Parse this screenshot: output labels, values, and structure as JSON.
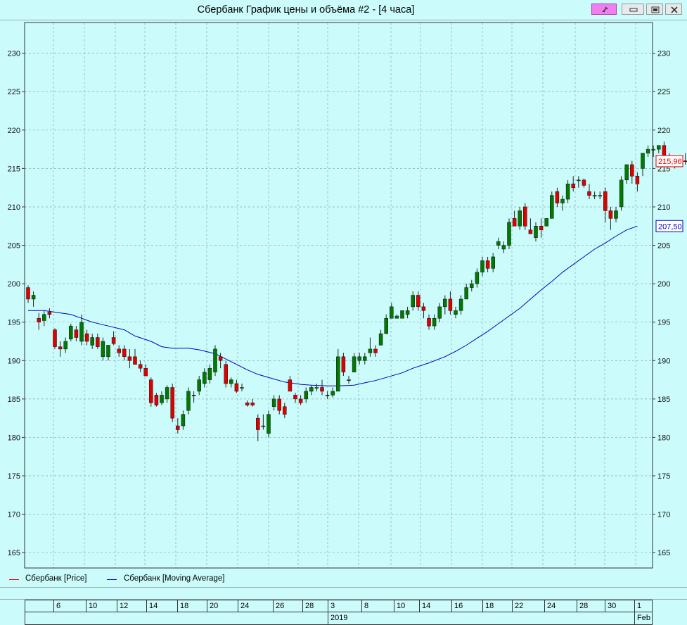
{
  "window": {
    "title": "Сбербанк График цены и объёма #2 - [4 часа]"
  },
  "legend": {
    "price_label": "Сбербанк [Price]",
    "ma_label": "Сбербанк [Moving Average]"
  },
  "time_axis": {
    "days": [
      "6",
      "10",
      "12",
      "14",
      "18",
      "20",
      "24",
      "26",
      "28",
      "3",
      "8",
      "10",
      "14",
      "16",
      "18",
      "22",
      "24",
      "28",
      "30",
      "1"
    ],
    "year": "2019",
    "month": "Feb"
  },
  "chart_data": {
    "type": "candlestick",
    "title": "",
    "ylim": [
      163,
      234
    ],
    "y_ticks": [
      165,
      170,
      175,
      180,
      185,
      190,
      195,
      200,
      205,
      210,
      215,
      220,
      225,
      230
    ],
    "grid": true,
    "last_price": "215,96",
    "last_ma": "207,50",
    "colors": {
      "up": "#007a00",
      "down": "#e00000",
      "ma": "#0000c0",
      "price_label": "#e00000",
      "ma_label": "#0000c0"
    },
    "candles": [
      [
        199.5,
        199.8,
        197.5,
        198.0
      ],
      [
        198.0,
        199.0,
        197.0,
        198.5
      ],
      [
        195.5,
        196.2,
        194.0,
        195.0
      ],
      [
        195.2,
        196.5,
        194.5,
        196.0
      ],
      [
        196.3,
        196.8,
        195.5,
        196.0
      ],
      [
        194.0,
        194.2,
        191.5,
        191.8
      ],
      [
        191.8,
        192.5,
        190.5,
        191.5
      ],
      [
        191.5,
        193.0,
        191.0,
        192.5
      ],
      [
        192.8,
        194.8,
        192.5,
        194.5
      ],
      [
        194.0,
        194.5,
        192.5,
        193.0
      ],
      [
        192.5,
        196.0,
        192.0,
        195.0
      ],
      [
        193.5,
        194.0,
        192.0,
        192.5
      ],
      [
        192.0,
        193.5,
        191.5,
        193.0
      ],
      [
        193.0,
        193.5,
        191.5,
        191.8
      ],
      [
        190.5,
        193.0,
        190.0,
        192.5
      ],
      [
        190.5,
        192.0,
        190.0,
        192.0
      ],
      [
        193.0,
        193.8,
        192.0,
        192.2
      ],
      [
        191.5,
        192.0,
        190.5,
        191.0
      ],
      [
        191.5,
        192.0,
        190.0,
        190.5
      ],
      [
        190.5,
        191.5,
        189.0,
        190.0
      ],
      [
        190.5,
        191.5,
        189.5,
        189.5
      ],
      [
        189.5,
        190.0,
        188.5,
        189.0
      ],
      [
        189.0,
        189.5,
        188.0,
        188.0
      ],
      [
        187.5,
        187.8,
        184.0,
        184.5
      ],
      [
        185.5,
        185.8,
        184.0,
        184.2
      ],
      [
        184.5,
        186.0,
        184.2,
        185.5
      ],
      [
        185.0,
        186.8,
        184.5,
        186.5
      ],
      [
        186.5,
        187.0,
        182.0,
        182.5
      ],
      [
        181.5,
        182.5,
        180.5,
        181.0
      ],
      [
        181.5,
        183.5,
        181.0,
        183.0
      ],
      [
        183.5,
        186.5,
        183.0,
        186.0
      ],
      [
        185.5,
        186.0,
        184.5,
        185.5
      ],
      [
        186.0,
        188.0,
        185.5,
        187.5
      ],
      [
        187.0,
        189.0,
        186.5,
        188.5
      ],
      [
        187.5,
        189.5,
        187.0,
        189.0
      ],
      [
        188.5,
        192.0,
        188.0,
        191.5
      ],
      [
        190.5,
        191.0,
        189.0,
        190.0
      ],
      [
        189.5,
        190.0,
        186.5,
        187.0
      ],
      [
        187.0,
        187.8,
        186.5,
        187.5
      ],
      [
        187.0,
        187.5,
        185.8,
        186.0
      ],
      [
        186.5,
        187.0,
        186.0,
        186.5
      ],
      [
        184.5,
        184.8,
        184.0,
        184.2
      ],
      [
        184.5,
        185.0,
        184.0,
        184.2
      ],
      [
        182.5,
        183.0,
        179.5,
        181.0
      ],
      [
        181.5,
        183.0,
        181.0,
        181.5
      ],
      [
        180.5,
        183.5,
        180.0,
        183.0
      ],
      [
        184.0,
        185.5,
        183.5,
        185.0
      ],
      [
        185.0,
        185.5,
        183.0,
        183.5
      ],
      [
        184.0,
        184.5,
        182.5,
        183.0
      ],
      [
        187.5,
        188.0,
        186.0,
        186.0
      ],
      [
        185.5,
        185.8,
        184.5,
        185.0
      ],
      [
        185.0,
        185.5,
        184.2,
        184.5
      ],
      [
        185.0,
        186.5,
        184.5,
        186.0
      ],
      [
        186.0,
        186.8,
        185.5,
        186.5
      ],
      [
        186.5,
        187.0,
        186.0,
        186.5
      ],
      [
        186.5,
        187.5,
        185.5,
        186.0
      ],
      [
        185.5,
        186.0,
        185.0,
        185.5
      ],
      [
        185.5,
        186.5,
        185.2,
        186.0
      ],
      [
        186.0,
        191.5,
        186.0,
        190.5
      ],
      [
        190.5,
        191.0,
        188.0,
        188.5
      ],
      [
        187.5,
        188.0,
        187.0,
        187.5
      ],
      [
        188.5,
        191.0,
        188.5,
        190.5
      ],
      [
        190.0,
        191.0,
        189.5,
        190.5
      ],
      [
        190.0,
        191.0,
        189.5,
        190.5
      ],
      [
        191.0,
        193.0,
        190.5,
        191.5
      ],
      [
        191.5,
        192.0,
        190.5,
        191.0
      ],
      [
        192.0,
        194.0,
        192.0,
        193.5
      ],
      [
        193.5,
        196.0,
        193.5,
        195.5
      ],
      [
        195.5,
        197.5,
        195.5,
        197.0
      ],
      [
        195.5,
        196.0,
        195.5,
        195.8
      ],
      [
        195.5,
        196.5,
        195.5,
        196.5
      ],
      [
        196.0,
        197.0,
        195.5,
        196.5
      ],
      [
        197.0,
        199.0,
        196.5,
        198.5
      ],
      [
        198.5,
        199.0,
        196.5,
        197.0
      ],
      [
        197.0,
        197.5,
        195.5,
        196.5
      ],
      [
        195.5,
        196.0,
        194.0,
        194.5
      ],
      [
        194.5,
        196.0,
        194.0,
        195.5
      ],
      [
        195.5,
        197.5,
        195.0,
        197.0
      ],
      [
        197.0,
        198.5,
        196.0,
        198.0
      ],
      [
        198.0,
        199.0,
        196.0,
        196.5
      ],
      [
        196.0,
        197.0,
        195.5,
        196.5
      ],
      [
        196.5,
        198.5,
        196.0,
        198.0
      ],
      [
        198.0,
        200.0,
        198.0,
        199.5
      ],
      [
        199.5,
        200.5,
        199.0,
        200.0
      ],
      [
        200.0,
        202.0,
        199.5,
        201.5
      ],
      [
        201.5,
        203.5,
        201.0,
        203.0
      ],
      [
        203.0,
        203.5,
        201.5,
        202.0
      ],
      [
        202.0,
        204.0,
        201.5,
        203.5
      ],
      [
        205.0,
        206.0,
        204.5,
        205.5
      ],
      [
        204.5,
        205.5,
        204.0,
        205.0
      ],
      [
        205.0,
        208.5,
        204.5,
        208.0
      ],
      [
        208.5,
        209.5,
        207.5,
        207.5
      ],
      [
        207.5,
        210.0,
        207.0,
        209.5
      ],
      [
        210.0,
        210.5,
        207.0,
        207.5
      ],
      [
        207.0,
        208.5,
        206.5,
        206.5
      ],
      [
        206.0,
        208.0,
        205.5,
        207.5
      ],
      [
        207.5,
        208.5,
        206.0,
        207.0
      ],
      [
        207.5,
        208.5,
        207.5,
        208.5
      ],
      [
        208.5,
        212.0,
        208.5,
        211.5
      ],
      [
        212.0,
        212.5,
        210.0,
        210.5
      ],
      [
        210.5,
        211.5,
        209.5,
        211.0
      ],
      [
        211.0,
        213.5,
        210.5,
        213.0
      ],
      [
        213.0,
        214.0,
        212.0,
        212.5
      ],
      [
        213.5,
        214.0,
        212.5,
        213.5
      ],
      [
        213.5,
        213.7,
        212.5,
        212.8
      ],
      [
        212.0,
        213.0,
        211.0,
        211.5
      ],
      [
        211.5,
        212.0,
        211.0,
        211.5
      ],
      [
        211.5,
        212.0,
        211.0,
        211.5
      ],
      [
        212.0,
        212.5,
        208.0,
        209.5
      ],
      [
        209.5,
        210.0,
        207.0,
        208.5
      ],
      [
        208.5,
        210.0,
        208.0,
        209.5
      ],
      [
        210.0,
        214.0,
        209.5,
        213.5
      ],
      [
        213.5,
        215.5,
        213.0,
        215.5
      ],
      [
        215.5,
        216.0,
        213.0,
        214.0
      ],
      [
        214.0,
        214.5,
        212.0,
        213.0
      ],
      [
        215.0,
        217.0,
        214.0,
        217.0
      ],
      [
        217.0,
        218.0,
        216.5,
        217.5
      ],
      [
        217.5,
        218.0,
        216.5,
        217.5
      ],
      [
        217.5,
        218.0,
        217.0,
        218.0
      ],
      [
        218.0,
        218.5,
        216.5,
        216.5
      ],
      [
        216.5,
        217.0,
        215.5,
        216.0
      ],
      [
        216.0,
        216.5,
        215.0,
        216.0
      ],
      [
        216.0,
        216.5,
        215.5,
        216.0
      ],
      [
        216.0,
        217.0,
        215.5,
        215.96
      ]
    ],
    "moving_average": [
      [
        0,
        196.5
      ],
      [
        3,
        196.5
      ],
      [
        5,
        196.3
      ],
      [
        8,
        196.0
      ],
      [
        10,
        195.5
      ],
      [
        12,
        195.0
      ],
      [
        15,
        194.5
      ],
      [
        18,
        194.0
      ],
      [
        20,
        193.2
      ],
      [
        23,
        192.5
      ],
      [
        25,
        191.8
      ],
      [
        27,
        191.6
      ],
      [
        30,
        191.6
      ],
      [
        32,
        191.4
      ],
      [
        35,
        190.9
      ],
      [
        37,
        190.2
      ],
      [
        39,
        189.5
      ],
      [
        41,
        188.8
      ],
      [
        43,
        188.2
      ],
      [
        46,
        187.6
      ],
      [
        48,
        187.2
      ],
      [
        51,
        186.9
      ],
      [
        53,
        186.8
      ],
      [
        56,
        186.7
      ],
      [
        58,
        186.7
      ],
      [
        61,
        186.8
      ],
      [
        63,
        187.1
      ],
      [
        65,
        187.4
      ],
      [
        67,
        187.8
      ],
      [
        70,
        188.4
      ],
      [
        72,
        189.0
      ],
      [
        75,
        189.7
      ],
      [
        78,
        190.5
      ],
      [
        80,
        191.2
      ],
      [
        82,
        192.0
      ],
      [
        84,
        192.9
      ],
      [
        86,
        193.8
      ],
      [
        88,
        194.8
      ],
      [
        90,
        195.8
      ],
      [
        92,
        196.8
      ],
      [
        94,
        198.0
      ],
      [
        96,
        199.2
      ],
      [
        98,
        200.3
      ],
      [
        100,
        201.5
      ],
      [
        102,
        202.5
      ],
      [
        104,
        203.5
      ],
      [
        106,
        204.5
      ],
      [
        108,
        205.3
      ],
      [
        110,
        206.2
      ],
      [
        112,
        207.0
      ],
      [
        114,
        207.5
      ]
    ]
  }
}
